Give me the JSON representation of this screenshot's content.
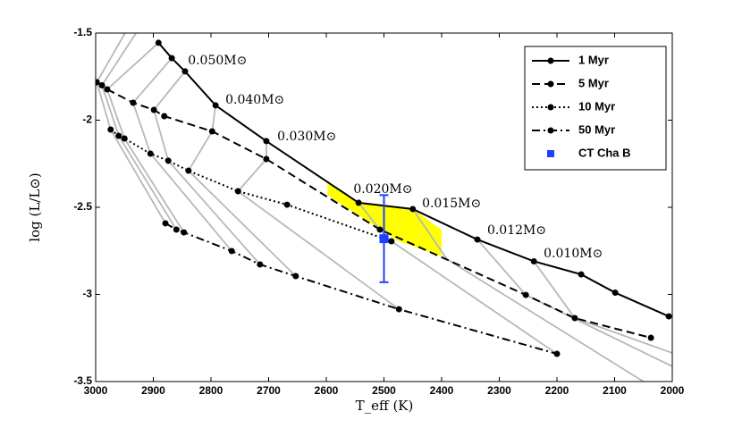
{
  "chart_data": {
    "type": "line",
    "xlabel": "T_eff (K)",
    "ylabel": "log (L/L⊙)",
    "xlim": [
      3000,
      2000
    ],
    "ylim": [
      -3.5,
      -1.5
    ],
    "xticks": [
      3000,
      2900,
      2800,
      2700,
      2600,
      2500,
      2400,
      2300,
      2200,
      2100,
      2000
    ],
    "yticks": [
      -3.5,
      -3,
      -2.5,
      -2,
      -1.5
    ],
    "legend": "upper right",
    "series": [
      {
        "name": "1 Myr",
        "color": "#000000",
        "dash": "solid",
        "x": [
          2891,
          2868,
          2845,
          2792,
          2704,
          2544,
          2450,
          2338,
          2240,
          2158,
          2099,
          2006
        ],
        "y": [
          -1.556,
          -1.644,
          -1.72,
          -1.915,
          -2.12,
          -2.474,
          -2.51,
          -2.685,
          -2.81,
          -2.885,
          -2.99,
          -3.126
        ]
      },
      {
        "name": "5 Myr",
        "color": "#000000",
        "dash": "dashed",
        "x": [
          2998,
          2989,
          2980,
          2935,
          2899,
          2881,
          2798,
          2704,
          2507,
          2254,
          2169,
          2037
        ],
        "y": [
          -1.782,
          -1.8,
          -1.823,
          -1.9,
          -1.941,
          -1.977,
          -2.064,
          -2.223,
          -2.628,
          -3.003,
          -3.136,
          -3.249
        ]
      },
      {
        "name": "10 Myr",
        "color": "#000000",
        "dash": "dotted",
        "x": [
          2974,
          2960,
          2950,
          2905,
          2874,
          2839,
          2753,
          2668,
          2487
        ],
        "y": [
          -2.054,
          -2.09,
          -2.105,
          -2.192,
          -2.233,
          -2.29,
          -2.408,
          -2.485,
          -2.695
        ]
      },
      {
        "name": "50 Myr",
        "color": "#000000",
        "dash": "dashdot",
        "x": [
          2879,
          2860,
          2847,
          2764,
          2715,
          2653,
          2474,
          2200
        ],
        "y": [
          -2.592,
          -2.628,
          -2.644,
          -2.751,
          -2.828,
          -2.895,
          -3.085,
          -3.341
        ]
      }
    ],
    "point": {
      "name": "CT Cha B",
      "color": "#2040ff",
      "x": 2500,
      "y": -2.68,
      "yerr": 0.25
    },
    "region": {
      "color": "#ffff00",
      "x": [
        2598,
        2544,
        2450,
        2400,
        2400,
        2474,
        2598
      ],
      "y": [
        -2.36,
        -2.474,
        -2.51,
        -2.63,
        -2.78,
        -2.695,
        -2.43
      ]
    },
    "tracks": [
      {
        "x": [
          2949,
          2998,
          2974,
          2879
        ],
        "y": [
          -1.5,
          -1.782,
          -2.054,
          -2.592
        ]
      },
      {
        "x": [
          2930,
          2989,
          2960,
          2860
        ],
        "y": [
          -1.5,
          -1.8,
          -2.09,
          -2.628
        ]
      },
      {
        "x": [
          2891,
          2980,
          2950,
          2847
        ],
        "y": [
          -1.556,
          -1.823,
          -2.105,
          -2.644
        ]
      },
      {
        "x": [
          2868,
          2935,
          2905,
          2764
        ],
        "y": [
          -1.644,
          -1.9,
          -2.192,
          -2.751
        ]
      },
      {
        "x": [
          2845,
          2899,
          2874,
          2715
        ],
        "y": [
          -1.72,
          -1.941,
          -2.233,
          -2.828
        ]
      },
      {
        "x": [
          2792,
          2798,
          2839,
          2653
        ],
        "y": [
          -1.915,
          -2.064,
          -2.29,
          -2.895
        ]
      },
      {
        "x": [
          2704,
          2704,
          2753,
          2474
        ],
        "y": [
          -2.12,
          -2.223,
          -2.408,
          -3.085
        ]
      },
      {
        "x": [
          2544,
          2507,
          2487,
          2200
        ],
        "y": [
          -2.474,
          -2.628,
          -2.695,
          -3.341
        ]
      },
      {
        "x": [
          2450,
          2391,
          2050
        ],
        "y": [
          -2.51,
          -2.797,
          -3.5
        ]
      },
      {
        "x": [
          2338,
          2254,
          2000
        ],
        "y": [
          -2.685,
          -3.003,
          -3.413
        ]
      },
      {
        "x": [
          2240,
          2169,
          2000
        ],
        "y": [
          -2.81,
          -3.136,
          -3.336
        ]
      }
    ],
    "annotations": [
      {
        "text": "0.050M⊙",
        "x": 2840,
        "y": -1.659
      },
      {
        "text": "0.040M⊙",
        "x": 2775,
        "y": -1.885
      },
      {
        "text": "0.030M⊙",
        "x": 2685,
        "y": -2.095
      },
      {
        "text": "0.020M⊙",
        "x": 2553,
        "y": -2.397
      },
      {
        "text": "0.015M⊙",
        "x": 2434,
        "y": -2.479
      },
      {
        "text": "0.012M⊙",
        "x": 2321,
        "y": -2.633
      },
      {
        "text": "0.010M⊙",
        "x": 2223,
        "y": -2.767
      }
    ]
  }
}
